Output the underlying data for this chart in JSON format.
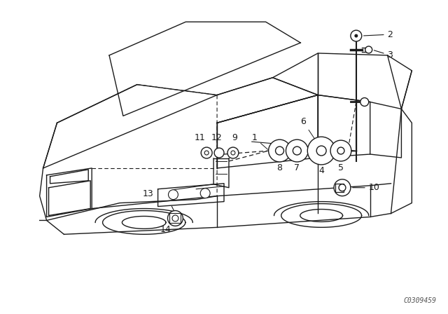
{
  "background_color": "#ffffff",
  "line_color": "#1a1a1a",
  "fig_width": 6.4,
  "fig_height": 4.48,
  "dpi": 100,
  "watermark": "C0309459",
  "watermark_fontsize": 7
}
